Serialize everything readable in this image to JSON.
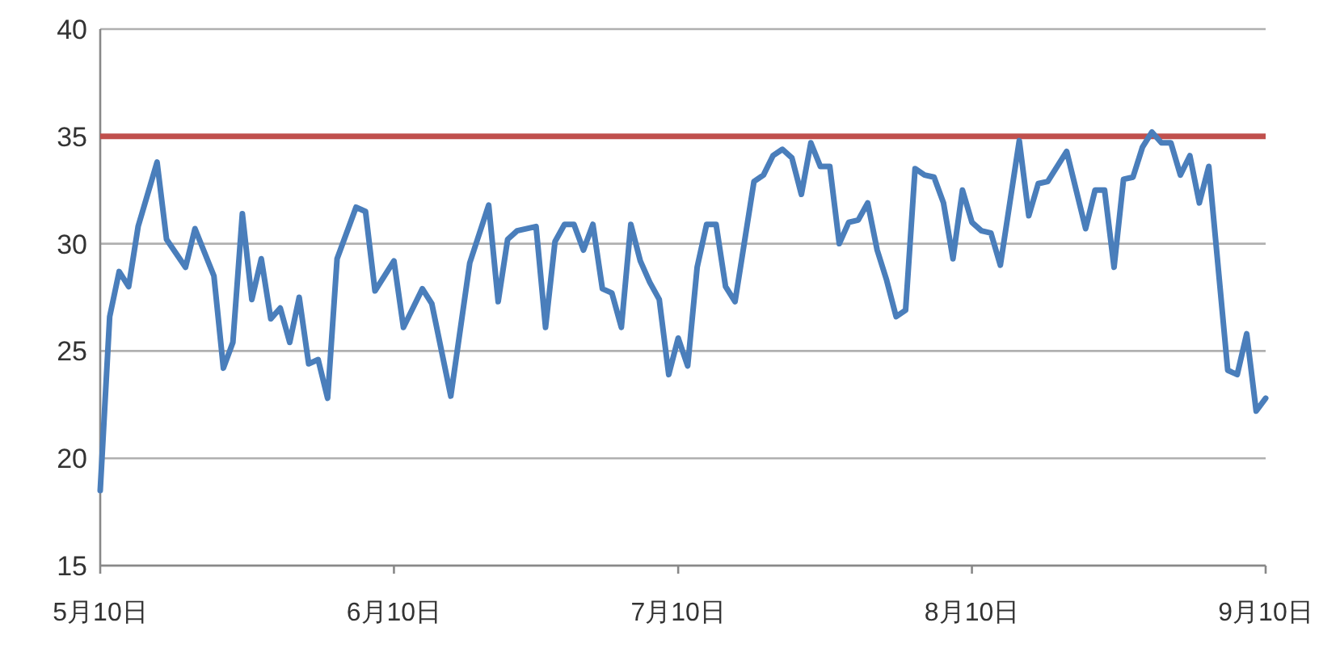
{
  "chart_data": {
    "type": "line",
    "x": [
      "--05-10",
      "--05-11",
      "--05-12",
      "--05-13",
      "--05-14",
      "--05-16",
      "--05-17",
      "--05-19",
      "--05-20",
      "--05-22",
      "--05-23",
      "--05-24",
      "--05-25",
      "--05-26",
      "--05-27",
      "--05-28",
      "--05-29",
      "--05-30",
      "--05-31",
      "--06-01",
      "--06-02",
      "--06-03",
      "--06-04",
      "--06-06",
      "--06-07",
      "--06-08",
      "--06-10",
      "--06-11",
      "--06-13",
      "--06-14",
      "--06-16",
      "--06-18",
      "--06-20",
      "--06-21",
      "--06-22",
      "--06-23",
      "--06-25",
      "--06-26",
      "--06-27",
      "--06-28",
      "--06-29",
      "--06-30",
      "--07-01",
      "--07-02",
      "--07-03",
      "--07-04",
      "--07-05",
      "--07-06",
      "--07-07",
      "--07-08",
      "--07-09",
      "--07-10",
      "--07-11",
      "--07-12",
      "--07-13",
      "--07-14",
      "--07-15",
      "--07-16",
      "--07-18",
      "--07-19",
      "--07-20",
      "--07-21",
      "--07-22",
      "--07-23",
      "--07-24",
      "--07-25",
      "--07-26",
      "--07-27",
      "--07-28",
      "--07-29",
      "--07-30",
      "--07-31",
      "--08-01",
      "--08-02",
      "--08-03",
      "--08-04",
      "--08-05",
      "--08-06",
      "--08-07",
      "--08-08",
      "--08-09",
      "--08-10",
      "--08-11",
      "--08-12",
      "--08-13",
      "--08-15",
      "--08-16",
      "--08-17",
      "--08-18",
      "--08-20",
      "--08-22",
      "--08-23",
      "--08-24",
      "--08-25",
      "--08-26",
      "--08-27",
      "--08-28",
      "--08-29",
      "--08-30",
      "--08-31",
      "--09-01",
      "--09-02",
      "--09-03",
      "--09-04",
      "--09-06",
      "--09-07",
      "--09-08",
      "--09-09",
      "--09-10"
    ],
    "values": [
      18.5,
      26.6,
      28.7,
      28,
      30.8,
      33.8,
      30.2,
      28.9,
      30.7,
      28.5,
      24.2,
      25.4,
      31.4,
      27.4,
      29.3,
      26.5,
      27,
      25.4,
      27.5,
      24.4,
      24.6,
      22.8,
      29.3,
      31.7,
      31.5,
      27.8,
      29.2,
      26.1,
      27.9,
      27.2,
      22.9,
      29.1,
      31.8,
      27.3,
      30.2,
      30.6,
      30.8,
      26.1,
      30.1,
      30.9,
      30.9,
      29.7,
      30.9,
      27.9,
      27.7,
      26.1,
      30.9,
      29.2,
      28.2,
      27.4,
      23.9,
      25.6,
      24.3,
      28.9,
      30.9,
      30.9,
      28,
      27.3,
      32.9,
      33.2,
      34.1,
      34.4,
      34,
      32.3,
      34.7,
      33.6,
      33.6,
      30,
      31,
      31.1,
      31.9,
      29.7,
      28.3,
      26.6,
      26.9,
      33.5,
      33.2,
      33.1,
      31.9,
      29.3,
      32.5,
      31,
      30.6,
      30.5,
      29,
      34.8,
      31.3,
      32.8,
      32.9,
      34.3,
      30.7,
      32.5,
      32.5,
      28.9,
      33,
      33.1,
      34.5,
      35.2,
      34.7,
      34.7,
      33.2,
      34.1,
      31.9,
      33.6,
      24.1,
      23.9,
      25.8,
      22.2,
      22.8
    ],
    "color": "#4a7ebb",
    "xlim": [
      "--05-10",
      "--09-10"
    ],
    "xticks": [
      {
        "value": "--05-10",
        "label": "5月10日"
      },
      {
        "value": "--06-10",
        "label": "6月10日"
      },
      {
        "value": "--07-10",
        "label": "7月10日"
      },
      {
        "value": "--08-10",
        "label": "8月10日"
      },
      {
        "value": "--09-10",
        "label": "9月10日"
      }
    ],
    "ylim": [
      15,
      40
    ],
    "yticks": [
      15,
      20,
      25,
      30,
      35,
      40
    ],
    "grid": "y",
    "marker": "none",
    "line_style": "solid",
    "ref_lines": [
      {
        "axis": "y",
        "value": 35,
        "color": "#c0504d"
      }
    ]
  }
}
